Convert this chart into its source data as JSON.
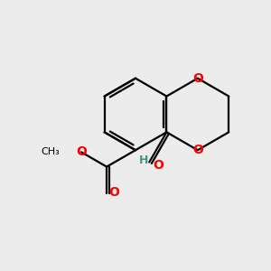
{
  "bg_color": "#ececec",
  "bond_color": "#000000",
  "oxygen_color": "#ff0000",
  "hydrogen_color": "#4a8f8f",
  "bond_width": 1.6,
  "figsize": [
    3.0,
    3.0
  ],
  "dpi": 100,
  "xlim": [
    0,
    10
  ],
  "ylim": [
    0,
    10
  ]
}
